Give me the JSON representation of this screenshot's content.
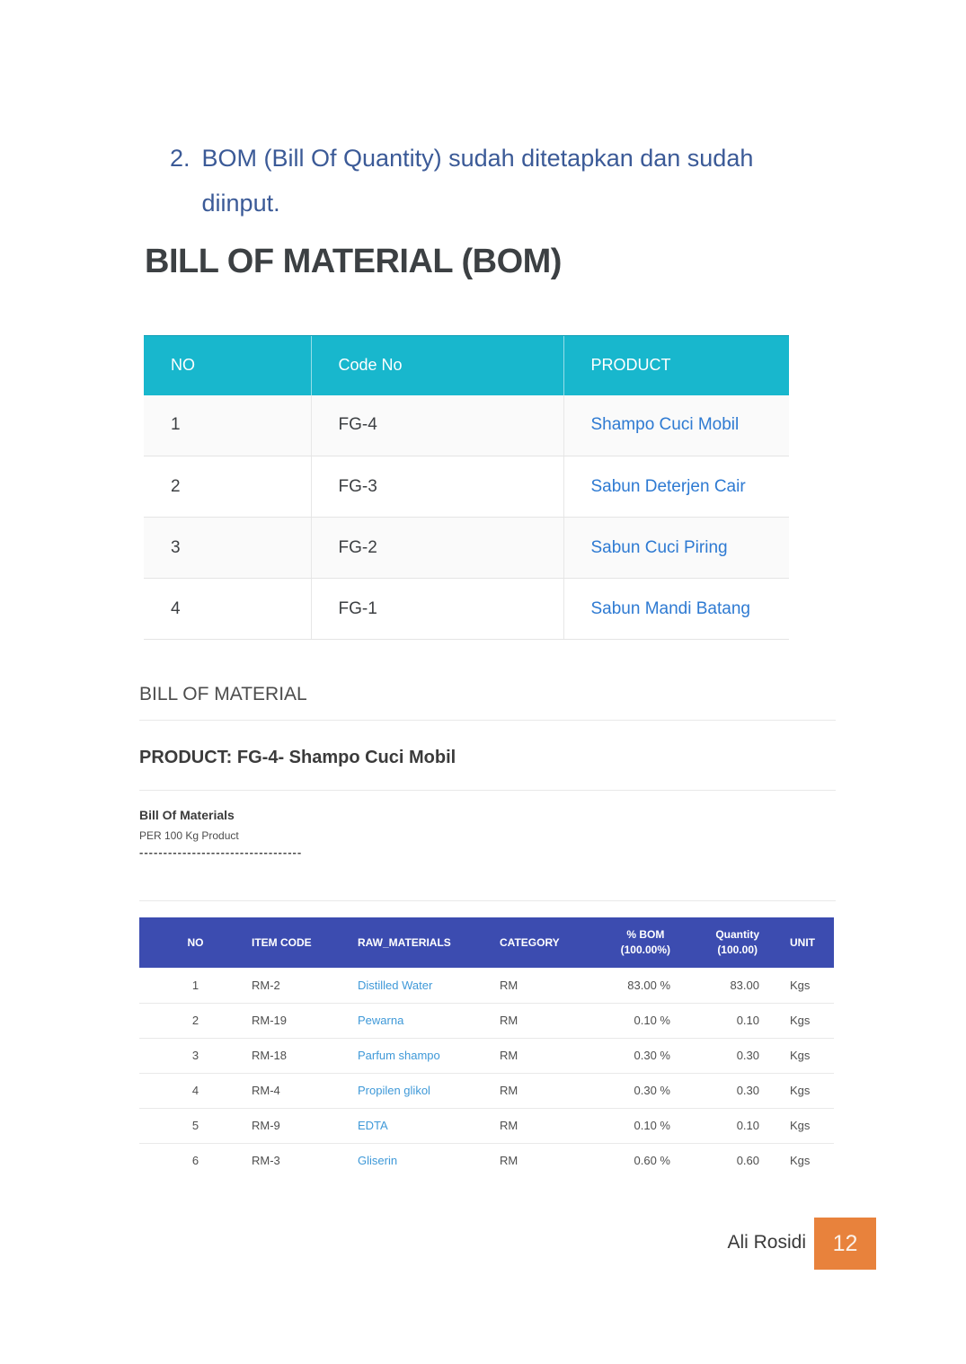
{
  "intro": {
    "number": "2.",
    "text": "BOM (Bill Of Quantity) sudah ditetapkan dan sudah diinput."
  },
  "heading": "BILL OF MATERIAL (BOM)",
  "products_table": {
    "headers": [
      "NO",
      "Code No",
      "PRODUCT"
    ],
    "rows": [
      {
        "no": "1",
        "code": "FG-4",
        "product": "Shampo Cuci Mobil"
      },
      {
        "no": "2",
        "code": "FG-3",
        "product": "Sabun Deterjen Cair"
      },
      {
        "no": "3",
        "code": "FG-2",
        "product": "Sabun Cuci Piring"
      },
      {
        "no": "4",
        "code": "FG-1",
        "product": "Sabun Mandi Batang"
      }
    ]
  },
  "bom_section": {
    "title": "BILL OF MATERIAL",
    "product_line": "PRODUCT: FG-4- Shampo Cuci Mobil",
    "subtitle": "Bill Of Materials",
    "note": "PER 100 Kg Product",
    "dashes": "----------------------------------"
  },
  "materials_table": {
    "headers": {
      "no": "NO",
      "item_code": "ITEM CODE",
      "raw_materials": "RAW_MATERIALS",
      "category": "CATEGORY",
      "bom_line1": "% BOM",
      "bom_line2": "(100.00%)",
      "qty_line1": "Quantity",
      "qty_line2": "(100.00)",
      "unit": "UNIT"
    },
    "rows": [
      {
        "no": "1",
        "item_code": "RM-2",
        "raw_material": "Distilled Water",
        "category": "RM",
        "bom": "83.00 %",
        "quantity": "83.00",
        "unit": "Kgs"
      },
      {
        "no": "2",
        "item_code": "RM-19",
        "raw_material": "Pewarna",
        "category": "RM",
        "bom": "0.10 %",
        "quantity": "0.10",
        "unit": "Kgs"
      },
      {
        "no": "3",
        "item_code": "RM-18",
        "raw_material": "Parfum shampo",
        "category": "RM",
        "bom": "0.30 %",
        "quantity": "0.30",
        "unit": "Kgs"
      },
      {
        "no": "4",
        "item_code": "RM-4",
        "raw_material": "Propilen glikol",
        "category": "RM",
        "bom": "0.30 %",
        "quantity": "0.30",
        "unit": "Kgs"
      },
      {
        "no": "5",
        "item_code": "RM-9",
        "raw_material": "EDTA",
        "category": "RM",
        "bom": "0.10 %",
        "quantity": "0.10",
        "unit": "Kgs"
      },
      {
        "no": "6",
        "item_code": "RM-3",
        "raw_material": "Gliserin",
        "category": "RM",
        "bom": "0.60 %",
        "quantity": "0.60",
        "unit": "Kgs"
      }
    ]
  },
  "footer": {
    "author": "Ali Rosidi",
    "page_number": "12"
  },
  "colors": {
    "teal_header": "#18b7cd",
    "indigo_header": "#3c4cb0",
    "product_link_blue": "#2e7ad2",
    "material_link_blue": "#3f99d8",
    "intro_blue": "#3b5a97",
    "orange_badge": "#e8823c"
  }
}
